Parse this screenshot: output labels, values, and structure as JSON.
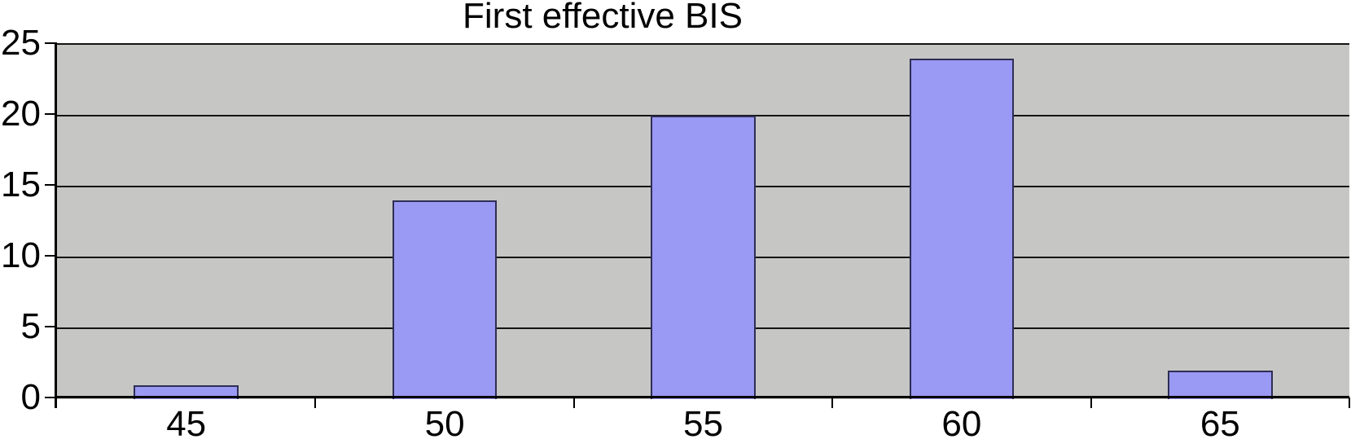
{
  "chart_data": {
    "type": "bar",
    "title": "First effective BIS",
    "categories": [
      "45",
      "50",
      "55",
      "60",
      "65"
    ],
    "values": [
      1,
      14,
      20,
      24,
      2
    ],
    "xlabel": "",
    "ylabel": "",
    "ylim": [
      0,
      25
    ],
    "yticks": [
      0,
      5,
      10,
      15,
      20,
      25
    ],
    "grid": "horizontal",
    "legend": "none",
    "colors": {
      "page_bg": "#ffffff",
      "plot_bg": "#c6c6c4",
      "bar_fill": "#9a99f3",
      "bar_border": "#2e2e55",
      "grid": "#141414",
      "axis": "#000000",
      "text": "#000000"
    }
  }
}
